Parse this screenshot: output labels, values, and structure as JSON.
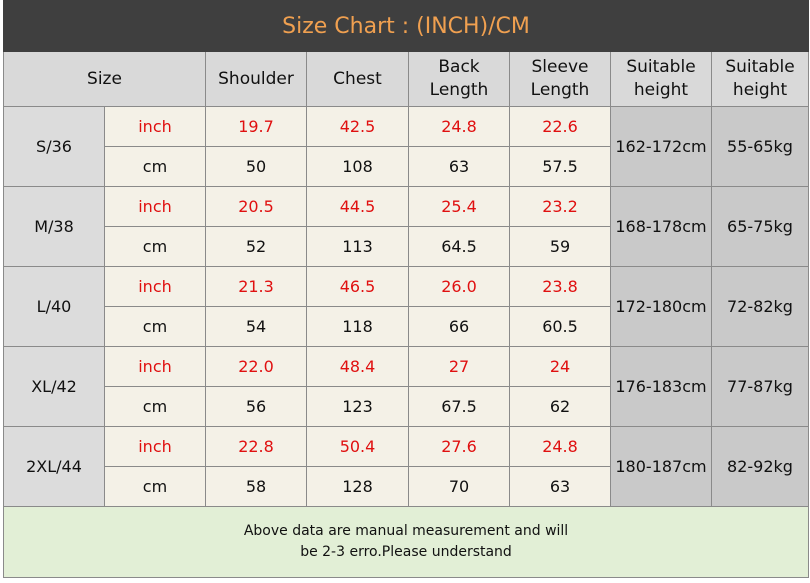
{
  "header": {
    "title": "Size Chart : (INCH)/CM"
  },
  "table": {
    "columns": [
      "Size",
      "Shoulder",
      "Chest",
      "Back\nLength",
      "Sleeve\nLength",
      "Suitable\nheight",
      "Suitable\nheight"
    ],
    "rows": [
      {
        "size": "S/36",
        "inch_label": "inch",
        "cm_label": "cm",
        "inch": [
          "19.7",
          "42.5",
          "24.8",
          "22.6"
        ],
        "cm": [
          "50",
          "108",
          "63",
          "57.5"
        ],
        "height": "162-172cm",
        "weight": "55-65kg"
      },
      {
        "size": "M/38",
        "inch_label": "inch",
        "cm_label": "cm",
        "inch": [
          "20.5",
          "44.5",
          "25.4",
          "23.2"
        ],
        "cm": [
          "52",
          "113",
          "64.5",
          "59"
        ],
        "height": "168-178cm",
        "weight": "65-75kg"
      },
      {
        "size": "L/40",
        "inch_label": "inch",
        "cm_label": "cm",
        "inch": [
          "21.3",
          "46.5",
          "26.0",
          "23.8"
        ],
        "cm": [
          "54",
          "118",
          "66",
          "60.5"
        ],
        "height": "172-180cm",
        "weight": "72-82kg"
      },
      {
        "size": "XL/42",
        "inch_label": "inch",
        "cm_label": "cm",
        "inch": [
          "22.0",
          "48.4",
          "27",
          "24"
        ],
        "cm": [
          "56",
          "123",
          "67.5",
          "62"
        ],
        "height": "176-183cm",
        "weight": "77-87kg"
      },
      {
        "size": "2XL/44",
        "inch_label": "inch",
        "cm_label": "cm",
        "inch": [
          "22.8",
          "50.4",
          "27.6",
          "24.8"
        ],
        "cm": [
          "58",
          "128",
          "70",
          "63"
        ],
        "height": "180-187cm",
        "weight": "82-92kg"
      }
    ]
  },
  "footer": {
    "note": "Above data are manual measurement and will\nbe 2-3 erro.Please understand"
  }
}
